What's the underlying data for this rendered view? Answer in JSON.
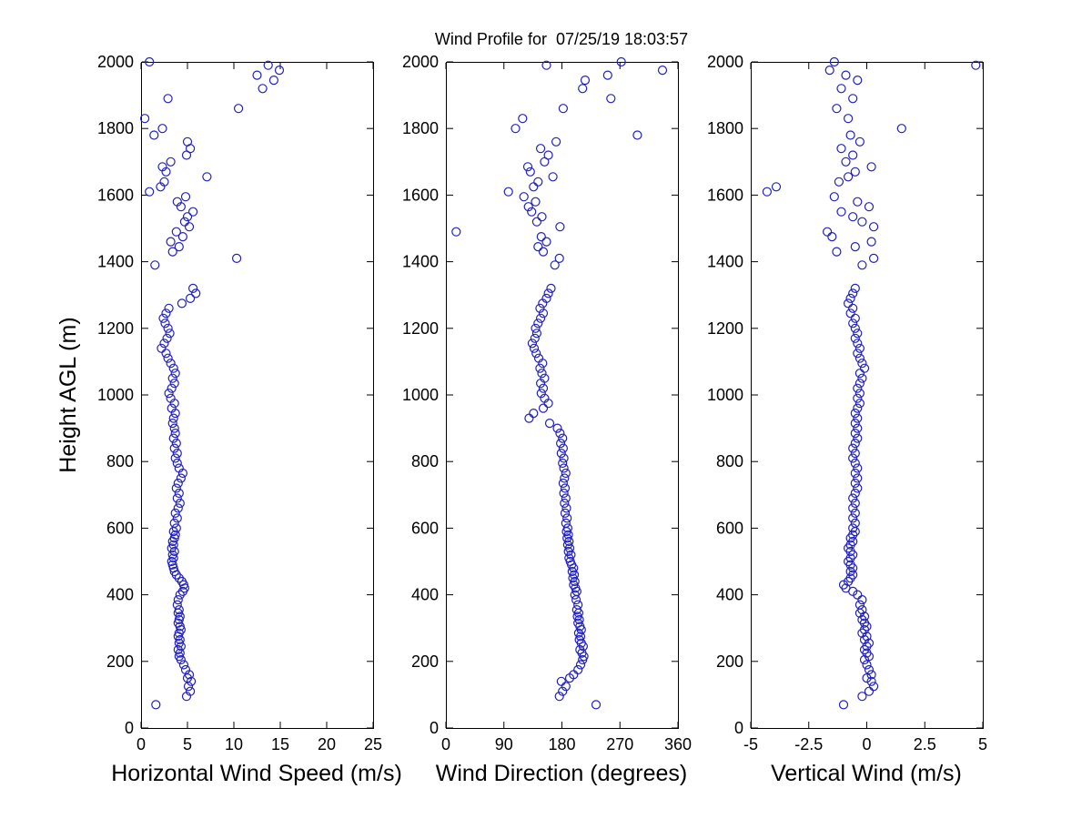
{
  "chart_data": {
    "type": "scatter",
    "title": "Wind Profile for  07/25/19 18:03:57",
    "ylabel": "Height AGL (m)",
    "ylim": [
      0,
      2000
    ],
    "yticks": [
      0,
      200,
      400,
      600,
      800,
      1000,
      1200,
      1400,
      1600,
      1800,
      2000
    ],
    "grid": false,
    "legend": false,
    "marker": {
      "shape": "circle",
      "color": "#2020c0",
      "size": 4.5
    },
    "heights": [
      70,
      95,
      110,
      125,
      140,
      150,
      160,
      175,
      190,
      205,
      215,
      225,
      235,
      245,
      255,
      265,
      275,
      285,
      295,
      305,
      315,
      325,
      335,
      345,
      355,
      370,
      385,
      400,
      410,
      420,
      430,
      440,
      450,
      460,
      470,
      480,
      490,
      500,
      510,
      520,
      530,
      540,
      550,
      560,
      570,
      580,
      590,
      600,
      615,
      630,
      645,
      660,
      675,
      690,
      705,
      720,
      735,
      750,
      765,
      780,
      795,
      810,
      825,
      840,
      855,
      870,
      885,
      900,
      915,
      930,
      945,
      960,
      975,
      990,
      1005,
      1020,
      1035,
      1050,
      1065,
      1080,
      1095,
      1110,
      1125,
      1140,
      1155,
      1170,
      1185,
      1200,
      1215,
      1230,
      1245,
      1260,
      1275,
      1290,
      1305,
      1320,
      1390,
      1410,
      1430,
      1445,
      1460,
      1475,
      1490,
      1505,
      1520,
      1535,
      1550,
      1565,
      1580,
      1595,
      1610,
      1625,
      1640,
      1655,
      1670,
      1685,
      1700,
      1720,
      1740,
      1760,
      1780,
      1800,
      1830,
      1860,
      1890,
      1920,
      1945,
      1960,
      1975,
      1990,
      2000
    ],
    "subplots": [
      {
        "xlabel": "Horizontal Wind Speed (m/s)",
        "xlim": [
          0,
          25
        ],
        "xticks": [
          0,
          5,
          10,
          15,
          20,
          25
        ],
        "values": [
          1.6,
          4.9,
          5.3,
          5.1,
          5.4,
          5.0,
          5.2,
          4.8,
          4.6,
          4.3,
          4.1,
          4.2,
          4.0,
          4.3,
          4.1,
          4.2,
          4.0,
          4.1,
          4.3,
          4.2,
          4.0,
          4.1,
          4.2,
          4.0,
          4.1,
          3.9,
          4.0,
          4.2,
          4.5,
          4.7,
          4.6,
          4.4,
          4.1,
          3.8,
          3.6,
          3.5,
          3.4,
          3.3,
          3.5,
          3.4,
          3.6,
          3.3,
          3.5,
          3.4,
          3.6,
          3.7,
          3.5,
          3.8,
          3.6,
          3.9,
          3.7,
          4.0,
          4.2,
          3.9,
          4.1,
          3.8,
          4.0,
          4.3,
          4.5,
          4.1,
          3.9,
          3.7,
          3.9,
          3.6,
          3.8,
          3.5,
          3.7,
          3.6,
          3.4,
          3.5,
          3.7,
          3.3,
          3.6,
          3.2,
          3.0,
          3.3,
          3.6,
          3.4,
          3.7,
          3.5,
          3.2,
          2.9,
          2.7,
          2.2,
          2.5,
          2.8,
          3.1,
          2.9,
          2.6,
          2.4,
          2.7,
          3.0,
          4.4,
          5.3,
          5.9,
          5.6,
          1.5,
          10.3,
          3.4,
          4.1,
          3.2,
          4.5,
          3.8,
          5.2,
          4.7,
          5.0,
          5.6,
          4.3,
          3.9,
          4.8,
          0.9,
          2.1,
          2.5,
          7.1,
          2.7,
          2.3,
          3.2,
          4.9,
          5.3,
          5.0,
          1.4,
          2.3,
          0.4,
          10.5,
          2.9,
          13.1,
          14.3,
          12.5,
          14.9,
          13.7,
          0.9
        ]
      },
      {
        "xlabel": "Wind Direction (degrees)",
        "xlim": [
          0,
          360
        ],
        "xticks": [
          0,
          90,
          180,
          270,
          360
        ],
        "values": [
          233,
          176,
          181,
          186,
          179,
          192,
          198,
          205,
          209,
          212,
          214,
          211,
          208,
          213,
          210,
          207,
          209,
          206,
          210,
          208,
          205,
          207,
          204,
          206,
          203,
          205,
          202,
          200,
          203,
          201,
          198,
          200,
          197,
          199,
          196,
          198,
          195,
          193,
          191,
          194,
          190,
          192,
          189,
          191,
          188,
          190,
          187,
          189,
          186,
          188,
          185,
          187,
          184,
          186,
          183,
          185,
          182,
          184,
          186,
          183,
          181,
          183,
          179,
          182,
          178,
          181,
          177,
          173,
          161,
          129,
          136,
          151,
          159,
          153,
          148,
          151,
          147,
          153,
          149,
          146,
          150,
          144,
          140,
          137,
          134,
          138,
          141,
          139,
          143,
          147,
          151,
          146,
          150,
          156,
          159,
          163,
          169,
          176,
          151,
          143,
          156,
          148,
          16,
          177,
          141,
          149,
          133,
          128,
          139,
          121,
          97,
          136,
          143,
          166,
          131,
          127,
          153,
          159,
          147,
          171,
          297,
          108,
          119,
          182,
          256,
          212,
          216,
          251,
          336,
          156,
          272
        ]
      },
      {
        "xlabel": "Vertical Wind (m/s)",
        "xlim": [
          -5,
          5
        ],
        "xticks": [
          -5,
          -2.5,
          0,
          2.5,
          5
        ],
        "values": [
          -1.0,
          -0.2,
          0.1,
          0.3,
          0.2,
          0.0,
          0.2,
          0.1,
          0.0,
          -0.1,
          0.1,
          0.0,
          -0.1,
          0.0,
          0.1,
          -0.1,
          0.0,
          -0.2,
          -0.1,
          0.0,
          -0.1,
          -0.2,
          -0.1,
          -0.3,
          -0.2,
          -0.3,
          -0.2,
          -0.4,
          -0.6,
          -0.9,
          -1.0,
          -0.8,
          -0.7,
          -0.6,
          -0.7,
          -0.6,
          -0.7,
          -0.8,
          -0.7,
          -0.6,
          -0.7,
          -0.8,
          -0.7,
          -0.6,
          -0.7,
          -0.6,
          -0.5,
          -0.6,
          -0.5,
          -0.6,
          -0.5,
          -0.6,
          -0.5,
          -0.6,
          -0.5,
          -0.4,
          -0.5,
          -0.4,
          -0.5,
          -0.4,
          -0.5,
          -0.6,
          -0.5,
          -0.6,
          -0.5,
          -0.4,
          -0.5,
          -0.4,
          -0.5,
          -0.4,
          -0.5,
          -0.4,
          -0.3,
          -0.4,
          -0.3,
          -0.4,
          -0.3,
          -0.2,
          -0.3,
          -0.1,
          -0.2,
          -0.3,
          -0.4,
          -0.3,
          -0.4,
          -0.5,
          -0.4,
          -0.5,
          -0.6,
          -0.5,
          -0.7,
          -0.6,
          -0.8,
          -0.7,
          -0.6,
          -0.5,
          -0.2,
          0.3,
          -1.3,
          -0.5,
          0.2,
          -1.5,
          -1.7,
          0.3,
          -0.2,
          -0.6,
          -1.1,
          0.1,
          -0.4,
          -1.4,
          -4.3,
          -3.9,
          -1.2,
          -0.8,
          -0.5,
          0.2,
          -0.9,
          -0.6,
          -1.1,
          -0.3,
          -0.7,
          1.5,
          -0.8,
          -1.3,
          -0.6,
          -1.1,
          -0.4,
          -0.9,
          -1.6,
          4.7,
          -1.4
        ]
      }
    ]
  }
}
